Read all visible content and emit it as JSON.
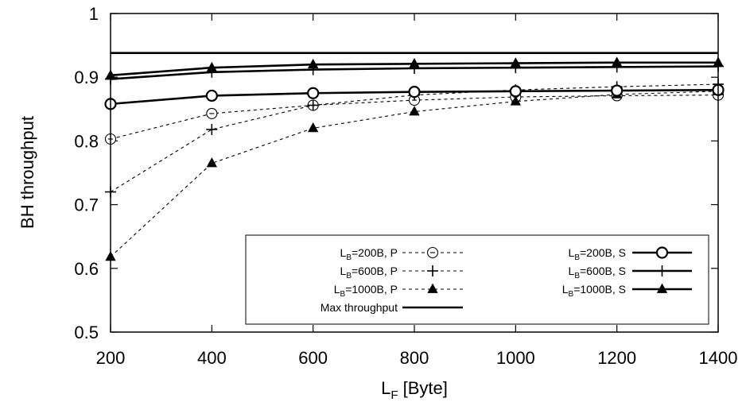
{
  "chart_data": {
    "type": "line",
    "xlabel": {
      "base": "L",
      "sub": "F",
      "rest": " [Byte]"
    },
    "ylabel": "BH throughput",
    "xlim": [
      200,
      1400
    ],
    "ylim": [
      0.5,
      1.0
    ],
    "x_ticks": [
      200,
      400,
      600,
      800,
      1000,
      1200,
      1400
    ],
    "x_tick_labels": [
      "200",
      "400",
      "600",
      "800",
      "1000",
      "1200",
      "1400"
    ],
    "y_ticks": [
      0.5,
      0.6,
      0.7,
      0.8,
      0.9,
      1.0
    ],
    "y_tick_labels": [
      "0.5",
      "0.6",
      "0.7",
      "0.8",
      "0.9",
      "1"
    ],
    "legend_position": "bottom-right",
    "x": [
      200,
      400,
      600,
      800,
      1000,
      1200,
      1400
    ],
    "series": [
      {
        "id": "p200",
        "name": {
          "base": "L",
          "sub": "B",
          "rest": "=200B, P"
        },
        "style": "dashed",
        "marker": "circle-dot",
        "values": [
          0.803,
          0.843,
          0.856,
          0.864,
          0.869,
          0.871,
          0.872
        ]
      },
      {
        "id": "p600",
        "name": {
          "base": "L",
          "sub": "B",
          "rest": "=600B, P"
        },
        "style": "dashed",
        "marker": "plus",
        "values": [
          0.72,
          0.818,
          0.856,
          0.872,
          0.88,
          0.885,
          0.889
        ]
      },
      {
        "id": "p1000",
        "name": {
          "base": "L",
          "sub": "B",
          "rest": "=1000B, P"
        },
        "style": "dashed",
        "marker": "triangle",
        "values": [
          0.618,
          0.765,
          0.82,
          0.846,
          0.862,
          0.873,
          0.878
        ]
      },
      {
        "id": "max",
        "name": {
          "base": "",
          "sub": "",
          "rest": "Max throughput"
        },
        "style": "solid",
        "marker": "none",
        "values": [
          0.938,
          0.938,
          0.938,
          0.938,
          0.938,
          0.938,
          0.938
        ]
      },
      {
        "id": "s200",
        "name": {
          "base": "L",
          "sub": "B",
          "rest": "=200B, S"
        },
        "style": "solid",
        "marker": "circle",
        "values": [
          0.858,
          0.871,
          0.875,
          0.877,
          0.878,
          0.879,
          0.88
        ]
      },
      {
        "id": "s600",
        "name": {
          "base": "L",
          "sub": "B",
          "rest": "=600B, S"
        },
        "style": "solid",
        "marker": "plus",
        "values": [
          0.897,
          0.908,
          0.912,
          0.914,
          0.915,
          0.916,
          0.917
        ]
      },
      {
        "id": "s1000",
        "name": {
          "base": "L",
          "sub": "B",
          "rest": "=1000B, S"
        },
        "style": "solid",
        "marker": "triangle",
        "values": [
          0.903,
          0.915,
          0.92,
          0.921,
          0.922,
          0.923,
          0.923
        ]
      }
    ]
  }
}
